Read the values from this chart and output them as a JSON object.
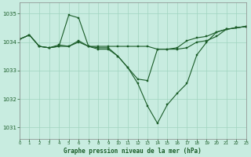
{
  "title": "Graphe pression niveau de la mer (hPa)",
  "bg_color": "#c8ece0",
  "grid_color": "#a0d4c0",
  "line_color": "#1a5c28",
  "fig_width": 3.2,
  "fig_height": 2.0,
  "dpi": 100,
  "xlim": [
    0,
    23
  ],
  "ylim": [
    1030.6,
    1035.4
  ],
  "yticks": [
    1031,
    1032,
    1033,
    1034,
    1035
  ],
  "series": [
    [
      1034.1,
      1034.25,
      1033.85,
      1033.8,
      1033.85,
      1034.95,
      1034.85,
      1033.85,
      1033.75,
      1033.75,
      1033.5,
      1033.1,
      1032.55,
      1031.75,
      1031.15,
      1031.8,
      1032.2,
      1032.55,
      1033.55,
      1034.0,
      1034.35,
      1034.45,
      1034.5,
      1034.55
    ],
    [
      1034.1,
      1034.25,
      1033.85,
      1033.8,
      1033.85,
      1033.85,
      1034.05,
      1033.85,
      1033.8,
      1033.8,
      1033.5,
      1033.1,
      1032.7,
      1032.65,
      1033.75,
      1033.75,
      1033.8,
      1034.05,
      1034.15,
      1034.2,
      1034.35,
      1034.45,
      1034.5,
      1034.55
    ],
    [
      1034.1,
      1034.25,
      1033.85,
      1033.8,
      1033.9,
      1033.85,
      1034.0,
      1033.85,
      1033.85,
      1033.85,
      1033.85,
      1033.85,
      1033.85,
      1033.85,
      1033.75,
      1033.75,
      1033.75,
      1033.8,
      1034.0,
      1034.05,
      1034.2,
      1034.45,
      1034.5,
      1034.55
    ]
  ]
}
